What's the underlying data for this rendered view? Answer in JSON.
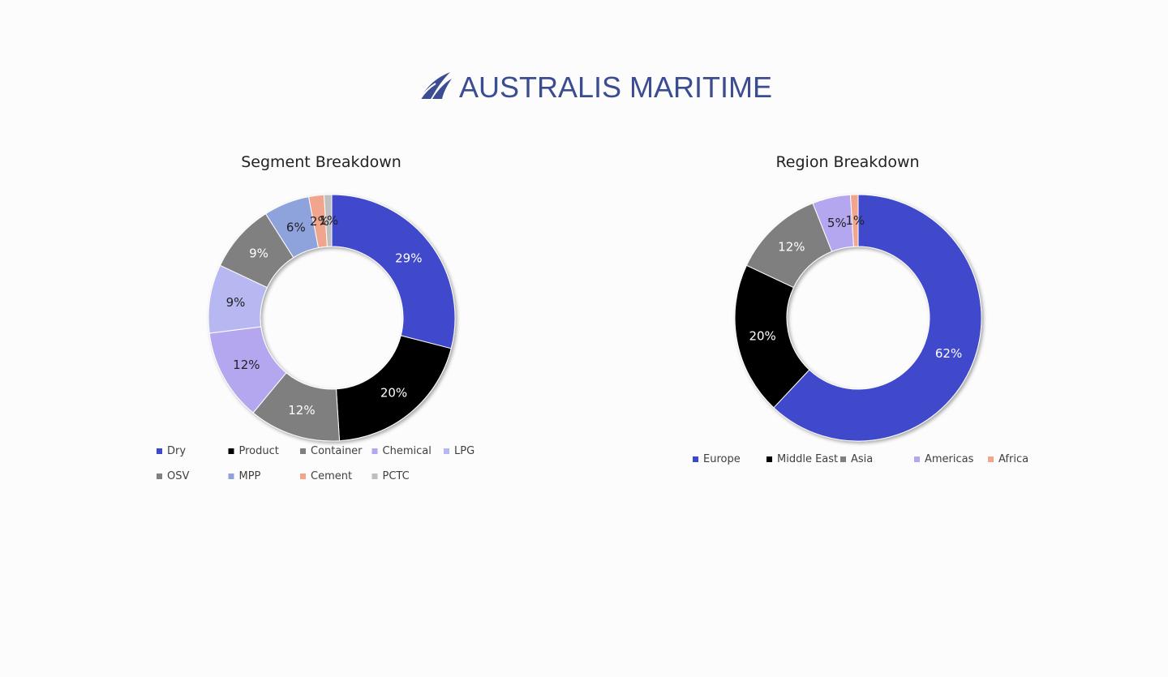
{
  "brand": {
    "name": "AUSTRALIS MARITIME",
    "color": "#3b4c93"
  },
  "chart_data": [
    {
      "type": "pie",
      "title": "Segment Breakdown",
      "legend_position": "bottom",
      "series": [
        {
          "name": "Dry",
          "label": "29%",
          "value": 29,
          "color": "#3f48cc"
        },
        {
          "name": "Product",
          "label": "20%",
          "value": 20,
          "color": "#000000"
        },
        {
          "name": "Container",
          "label": "12%",
          "value": 12,
          "color": "#7f7f7f"
        },
        {
          "name": "Chemical",
          "label": "12%",
          "value": 12,
          "color": "#b4a7f0"
        },
        {
          "name": "LPG",
          "label": "9%",
          "value": 9,
          "color": "#b7b8f1"
        },
        {
          "name": "OSV",
          "label": "9%",
          "value": 9,
          "color": "#808080"
        },
        {
          "name": "MPP",
          "label": "6%",
          "value": 6,
          "color": "#8ea2dc"
        },
        {
          "name": "Cement",
          "label": "2%",
          "value": 2,
          "color": "#f0a58c"
        },
        {
          "name": "PCTC",
          "label": "1%",
          "value": 1,
          "color": "#bfbfbf"
        }
      ]
    },
    {
      "type": "pie",
      "title": "Region Breakdown",
      "legend_position": "bottom",
      "series": [
        {
          "name": "Europe",
          "label": "62%",
          "value": 62,
          "color": "#3f48cc"
        },
        {
          "name": "Middle East",
          "label": "20%",
          "value": 20,
          "color": "#000000"
        },
        {
          "name": "Asia",
          "label": "12%",
          "value": 12,
          "color": "#7f7f7f"
        },
        {
          "name": "Americas",
          "label": "5%",
          "value": 5,
          "color": "#b4a7f0"
        },
        {
          "name": "Africa",
          "label": "1%",
          "value": 1,
          "color": "#f0a58c"
        }
      ]
    }
  ]
}
